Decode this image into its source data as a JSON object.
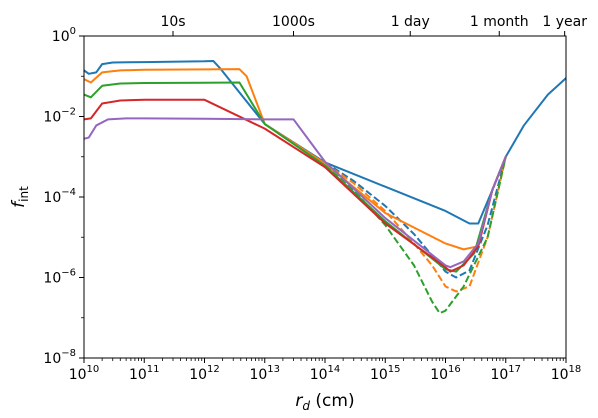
{
  "chart_data": {
    "type": "line",
    "title": "",
    "xlabel": "r_d (cm)",
    "ylabel": "f_int",
    "xscale": "log",
    "yscale": "log",
    "xlim": [
      10000000000.0,
      1e+18
    ],
    "ylim": [
      1e-08,
      1
    ],
    "grid": false,
    "legend": "none",
    "x_ticks": [
      {
        "value": 10000000000.0,
        "base": "10",
        "exp": "10"
      },
      {
        "value": 100000000000.0,
        "base": "10",
        "exp": "11"
      },
      {
        "value": 1000000000000.0,
        "base": "10",
        "exp": "12"
      },
      {
        "value": 10000000000000.0,
        "base": "10",
        "exp": "13"
      },
      {
        "value": 100000000000000.0,
        "base": "10",
        "exp": "14"
      },
      {
        "value": 1000000000000000.0,
        "base": "10",
        "exp": "15"
      },
      {
        "value": 1e+16,
        "base": "10",
        "exp": "16"
      },
      {
        "value": 1e+17,
        "base": "10",
        "exp": "17"
      },
      {
        "value": 1e+18,
        "base": "10",
        "exp": "18"
      }
    ],
    "y_ticks": [
      {
        "value": 1,
        "base": "10",
        "exp": "0"
      },
      {
        "value": 0.01,
        "base": "10",
        "exp": "−2"
      },
      {
        "value": 0.0001,
        "base": "10",
        "exp": "−4"
      },
      {
        "value": 1e-06,
        "base": "10",
        "exp": "−6"
      },
      {
        "value": 1e-08,
        "base": "10",
        "exp": "−8"
      }
    ],
    "top_axis_ticks": [
      {
        "label": "10s",
        "x": 300000000000.0
      },
      {
        "label": "1000s",
        "x": 30000000000000.0
      },
      {
        "label": "1 day",
        "x": 2600000000000000.0
      },
      {
        "label": "1 month",
        "x": 7.8e+16
      },
      {
        "label": "1 year",
        "x": 9.5e+17
      }
    ],
    "series": [
      {
        "color": "#1f77b4",
        "style": "solid",
        "points": [
          [
            10000000000.0,
            0.14
          ],
          [
            12000000000.0,
            0.115
          ],
          [
            16000000000.0,
            0.125
          ],
          [
            20000000000.0,
            0.2
          ],
          [
            30000000000.0,
            0.22
          ],
          [
            100000000000.0,
            0.225
          ],
          [
            1000000000000.0,
            0.235
          ],
          [
            1400000000000.0,
            0.24
          ],
          [
            1800000000000.0,
            0.16
          ],
          [
            10000000000000.0,
            0.0065
          ],
          [
            100000000000000.0,
            0.00072
          ],
          [
            1000000000000000.0,
            0.00018
          ],
          [
            1e+16,
            4.5e-05
          ],
          [
            2.5e+16,
            2.2e-05
          ],
          [
            3.5e+16,
            2.2e-05
          ],
          [
            6e+16,
            0.00015
          ],
          [
            1e+17,
            0.001
          ],
          [
            2e+17,
            0.006
          ],
          [
            5e+17,
            0.035
          ],
          [
            1e+18,
            0.09
          ]
        ]
      },
      {
        "color": "#1f77b4",
        "style": "dashed",
        "points": [
          [
            100000000000000.0,
            0.00072
          ],
          [
            300000000000000.0,
            0.00025
          ],
          [
            1000000000000000.0,
            6e-05
          ],
          [
            3000000000000000.0,
            1.2e-05
          ],
          [
            6000000000000000.0,
            3.5e-06
          ],
          [
            1e+16,
            1.4e-06
          ],
          [
            1.5e+16,
            1e-06
          ],
          [
            2.5e+16,
            1.5e-06
          ],
          [
            5e+16,
            2e-05
          ],
          [
            1e+17,
            0.001
          ]
        ]
      },
      {
        "color": "#ff7f0e",
        "style": "solid",
        "points": [
          [
            10000000000.0,
            0.085
          ],
          [
            13000000000.0,
            0.07
          ],
          [
            20000000000.0,
            0.125
          ],
          [
            40000000000.0,
            0.14
          ],
          [
            100000000000.0,
            0.145
          ],
          [
            1000000000000.0,
            0.148
          ],
          [
            3800000000000.0,
            0.15
          ],
          [
            5000000000000.0,
            0.1
          ],
          [
            10000000000000.0,
            0.0065
          ],
          [
            100000000000000.0,
            0.00068
          ],
          [
            1000000000000000.0,
            4e-05
          ],
          [
            1e+16,
            7e-06
          ],
          [
            2e+16,
            5e-06
          ],
          [
            3.5e+16,
            6e-06
          ],
          [
            6e+16,
            0.00015
          ],
          [
            1e+17,
            0.001
          ]
        ]
      },
      {
        "color": "#ff7f0e",
        "style": "dashed",
        "points": [
          [
            100000000000000.0,
            0.00068
          ],
          [
            300000000000000.0,
            0.00022
          ],
          [
            1000000000000000.0,
            4.5e-05
          ],
          [
            3000000000000000.0,
            7e-06
          ],
          [
            6000000000000000.0,
            2e-06
          ],
          [
            1e+16,
            6e-07
          ],
          [
            1.5e+16,
            4.5e-07
          ],
          [
            2.5e+16,
            6e-07
          ],
          [
            5e+16,
            1e-05
          ],
          [
            1e+17,
            0.001
          ]
        ]
      },
      {
        "color": "#2ca02c",
        "style": "solid",
        "points": [
          [
            10000000000.0,
            0.035
          ],
          [
            13000000000.0,
            0.03
          ],
          [
            20000000000.0,
            0.058
          ],
          [
            40000000000.0,
            0.066
          ],
          [
            100000000000.0,
            0.068
          ],
          [
            1000000000000.0,
            0.069
          ],
          [
            3800000000000.0,
            0.07
          ],
          [
            10000000000000.0,
            0.0065
          ],
          [
            100000000000000.0,
            0.0006
          ],
          [
            1000000000000000.0,
            2.5e-05
          ],
          [
            1e+16,
            1.6e-06
          ],
          [
            1.5e+16,
            1.4e-06
          ],
          [
            3e+16,
            4e-06
          ],
          [
            6e+16,
            0.00015
          ],
          [
            1e+17,
            0.001
          ]
        ]
      },
      {
        "color": "#2ca02c",
        "style": "dashed",
        "points": [
          [
            100000000000000.0,
            0.0006
          ],
          [
            300000000000000.0,
            0.00015
          ],
          [
            1000000000000000.0,
            2e-05
          ],
          [
            3000000000000000.0,
            2e-06
          ],
          [
            6000000000000000.0,
            2.5e-07
          ],
          [
            8000000000000000.0,
            1.3e-07
          ],
          [
            1e+16,
            1.5e-07
          ],
          [
            2e+16,
            6e-07
          ],
          [
            5e+16,
            1e-05
          ],
          [
            1e+17,
            0.001
          ]
        ]
      },
      {
        "color": "#d62728",
        "style": "solid",
        "points": [
          [
            10000000000.0,
            0.0085
          ],
          [
            13000000000.0,
            0.009
          ],
          [
            20000000000.0,
            0.021
          ],
          [
            40000000000.0,
            0.025
          ],
          [
            100000000000.0,
            0.026
          ],
          [
            1000000000000.0,
            0.026
          ],
          [
            10000000000000.0,
            0.005
          ],
          [
            100000000000000.0,
            0.00055
          ],
          [
            1000000000000000.0,
            2.2e-05
          ],
          [
            1e+16,
            1.8e-06
          ],
          [
            1.2e+16,
            1.4e-06
          ],
          [
            2e+16,
            2e-06
          ],
          [
            3.5e+16,
            6e-06
          ],
          [
            6e+16,
            0.00015
          ],
          [
            1e+17,
            0.001
          ]
        ]
      },
      {
        "color": "#9467bd",
        "style": "solid",
        "points": [
          [
            10000000000.0,
            0.0028
          ],
          [
            12000000000.0,
            0.003
          ],
          [
            16000000000.0,
            0.006
          ],
          [
            25000000000.0,
            0.0085
          ],
          [
            50000000000.0,
            0.009
          ],
          [
            100000000000.0,
            0.009
          ],
          [
            1000000000000.0,
            0.0088
          ],
          [
            10000000000000.0,
            0.0085
          ],
          [
            30000000000000.0,
            0.0085
          ],
          [
            100000000000000.0,
            0.00075
          ],
          [
            1000000000000000.0,
            3e-05
          ],
          [
            1e+16,
            2e-06
          ],
          [
            1.2e+16,
            1.8e-06
          ],
          [
            2e+16,
            2.5e-06
          ],
          [
            3.5e+16,
            7e-06
          ],
          [
            6e+16,
            0.00015
          ],
          [
            1e+17,
            0.001
          ]
        ]
      }
    ]
  }
}
